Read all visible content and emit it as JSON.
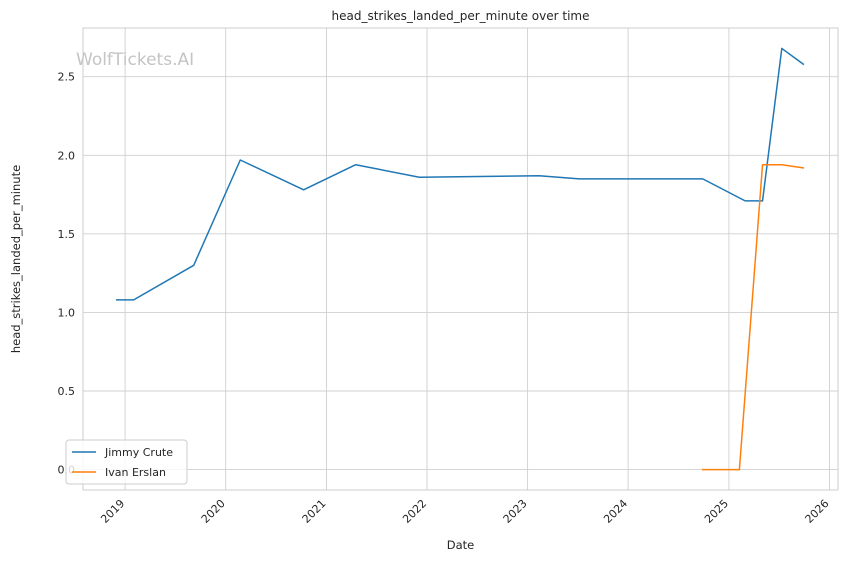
{
  "chart_data": {
    "type": "line",
    "title": "head_strikes_landed_per_minute over time",
    "xlabel": "Date",
    "ylabel": "head_strikes_landed_per_minute",
    "watermark": "WolfTickets.AI",
    "x_ticks": [
      "2019",
      "2020",
      "2021",
      "2022",
      "2023",
      "2024",
      "2025",
      "2026"
    ],
    "y_ticks": [
      "0.0",
      "0.5",
      "1.0",
      "1.5",
      "2.0",
      "2.5"
    ],
    "xlim": [
      "2018-08-01",
      "2026-02-01"
    ],
    "ylim": [
      -0.13,
      2.81
    ],
    "grid": true,
    "legend_position": "lower-left",
    "series": [
      {
        "name": "Jimmy Crute",
        "color": "#1f77b4",
        "points": [
          [
            "2018-12-01",
            1.08
          ],
          [
            "2019-02-01",
            1.08
          ],
          [
            "2019-09-07",
            1.3
          ],
          [
            "2020-02-23",
            1.97
          ],
          [
            "2020-10-10",
            1.78
          ],
          [
            "2021-04-17",
            1.94
          ],
          [
            "2021-12-04",
            1.86
          ],
          [
            "2023-02-12",
            1.87
          ],
          [
            "2023-07-08",
            1.85
          ],
          [
            "2024-09-28",
            1.85
          ],
          [
            "2025-03-01",
            1.71
          ],
          [
            "2025-05-03",
            1.71
          ],
          [
            "2025-07-12",
            2.68
          ],
          [
            "2025-09-28",
            2.58
          ]
        ]
      },
      {
        "name": "Ivan Erslan",
        "color": "#ff7f0e",
        "points": [
          [
            "2024-09-28",
            0.0
          ],
          [
            "2025-02-08",
            0.0
          ],
          [
            "2025-05-03",
            1.94
          ],
          [
            "2025-07-12",
            1.94
          ],
          [
            "2025-09-28",
            1.92
          ]
        ]
      }
    ]
  }
}
